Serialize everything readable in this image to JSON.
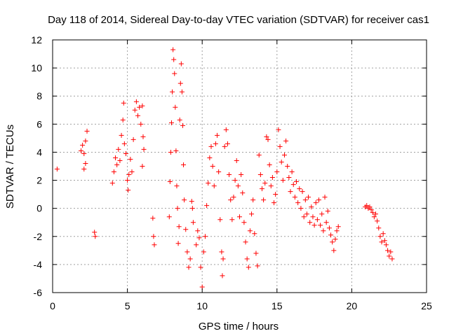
{
  "chart_data": {
    "type": "scatter",
    "title": "Day 118 of 2014, Sidereal Day-to-day VTEC variation (SDTVAR) for receiver cas1",
    "xlabel": "GPS time / hours",
    "ylabel": "SDTVAR / TECUs",
    "xlim": [
      0,
      25
    ],
    "ylim": [
      -6,
      12
    ],
    "xticks": [
      0,
      5,
      10,
      15,
      20,
      25
    ],
    "yticks": [
      -6,
      -4,
      -2,
      0,
      2,
      4,
      6,
      8,
      10,
      12
    ],
    "xtick_labels": [
      "0",
      "5",
      "10",
      "15",
      "20",
      "25"
    ],
    "ytick_labels": [
      "-6",
      "-4",
      "-2",
      "0",
      "2",
      "4",
      "6",
      "8",
      "10",
      "12"
    ],
    "grid": true,
    "marker": "+",
    "color": "#ff0000",
    "series": [
      {
        "name": "cas1",
        "points": [
          [
            0.3,
            2.8
          ],
          [
            1.9,
            4.1
          ],
          [
            2.0,
            4.5
          ],
          [
            2.1,
            3.9
          ],
          [
            2.2,
            4.8
          ],
          [
            2.3,
            5.5
          ],
          [
            2.2,
            3.2
          ],
          [
            2.1,
            2.8
          ],
          [
            2.8,
            -1.7
          ],
          [
            2.85,
            -2.0
          ],
          [
            4.0,
            1.8
          ],
          [
            4.1,
            2.6
          ],
          [
            4.2,
            3.6
          ],
          [
            4.3,
            3.1
          ],
          [
            4.4,
            4.2
          ],
          [
            4.5,
            3.4
          ],
          [
            4.6,
            5.2
          ],
          [
            4.7,
            6.3
          ],
          [
            4.75,
            7.5
          ],
          [
            4.8,
            4.6
          ],
          [
            4.9,
            3.9
          ],
          [
            5.0,
            2.0
          ],
          [
            5.05,
            1.3
          ],
          [
            5.1,
            2.4
          ],
          [
            5.2,
            3.5
          ],
          [
            5.3,
            2.6
          ],
          [
            5.4,
            4.9
          ],
          [
            5.5,
            7.0
          ],
          [
            5.6,
            7.6
          ],
          [
            5.7,
            6.6
          ],
          [
            5.8,
            7.2
          ],
          [
            5.9,
            6.0
          ],
          [
            6.0,
            7.3
          ],
          [
            6.05,
            5.1
          ],
          [
            6.1,
            4.2
          ],
          [
            6.0,
            3.0
          ],
          [
            6.7,
            -0.7
          ],
          [
            6.75,
            -2.0
          ],
          [
            6.8,
            -2.6
          ],
          [
            7.8,
            -0.6
          ],
          [
            7.85,
            1.9
          ],
          [
            7.9,
            4.0
          ],
          [
            7.95,
            6.1
          ],
          [
            8.0,
            8.3
          ],
          [
            8.05,
            11.3
          ],
          [
            8.1,
            10.6
          ],
          [
            8.15,
            9.6
          ],
          [
            8.2,
            7.2
          ],
          [
            8.25,
            4.1
          ],
          [
            8.3,
            1.6
          ],
          [
            8.35,
            0.0
          ],
          [
            8.4,
            -2.5
          ],
          [
            8.45,
            -1.3
          ],
          [
            8.5,
            6.3
          ],
          [
            8.55,
            8.9
          ],
          [
            8.6,
            10.3
          ],
          [
            8.65,
            8.3
          ],
          [
            8.7,
            5.9
          ],
          [
            8.75,
            3.1
          ],
          [
            8.8,
            0.6
          ],
          [
            8.9,
            -1.5
          ],
          [
            9.0,
            -3.1
          ],
          [
            9.1,
            -4.2
          ],
          [
            9.2,
            -3.6
          ],
          [
            9.3,
            0.5
          ],
          [
            9.35,
            0.0
          ],
          [
            9.4,
            -1.0
          ],
          [
            9.6,
            -2.6
          ],
          [
            9.7,
            -1.6
          ],
          [
            9.8,
            -2.1
          ],
          [
            9.9,
            -4.2
          ],
          [
            10.0,
            -5.6
          ],
          [
            10.1,
            -3.1
          ],
          [
            10.2,
            -2.0
          ],
          [
            10.3,
            0.2
          ],
          [
            10.4,
            1.8
          ],
          [
            10.5,
            3.6
          ],
          [
            10.6,
            4.4
          ],
          [
            10.7,
            3.0
          ],
          [
            10.8,
            1.6
          ],
          [
            10.9,
            4.6
          ],
          [
            11.0,
            5.2
          ],
          [
            11.1,
            2.6
          ],
          [
            11.2,
            -0.8
          ],
          [
            11.3,
            -3.1
          ],
          [
            11.35,
            -4.8
          ],
          [
            11.4,
            -3.6
          ],
          [
            11.5,
            4.4
          ],
          [
            11.6,
            5.6
          ],
          [
            11.7,
            4.6
          ],
          [
            11.8,
            2.4
          ],
          [
            11.9,
            0.6
          ],
          [
            12.0,
            -0.8
          ],
          [
            12.1,
            0.8
          ],
          [
            12.2,
            2.0
          ],
          [
            12.3,
            3.4
          ],
          [
            12.4,
            1.6
          ],
          [
            12.5,
            -0.6
          ],
          [
            12.6,
            2.4
          ],
          [
            12.7,
            1.1
          ],
          [
            12.8,
            -1.0
          ],
          [
            12.9,
            -2.4
          ],
          [
            13.0,
            -3.6
          ],
          [
            13.1,
            -4.2
          ],
          [
            13.2,
            -1.6
          ],
          [
            13.3,
            -0.4
          ],
          [
            13.4,
            0.6
          ],
          [
            13.5,
            -1.8
          ],
          [
            13.6,
            -3.2
          ],
          [
            13.7,
            -4.1
          ],
          [
            13.8,
            3.8
          ],
          [
            13.9,
            2.4
          ],
          [
            14.0,
            1.4
          ],
          [
            14.1,
            0.6
          ],
          [
            14.2,
            1.8
          ],
          [
            14.3,
            5.1
          ],
          [
            14.4,
            4.9
          ],
          [
            14.5,
            3.1
          ],
          [
            14.6,
            1.6
          ],
          [
            14.7,
            2.2
          ],
          [
            14.8,
            0.4
          ],
          [
            14.9,
            1.0
          ],
          [
            15.0,
            2.6
          ],
          [
            15.1,
            5.6
          ],
          [
            15.2,
            4.4
          ],
          [
            15.3,
            3.3
          ],
          [
            15.4,
            2.0
          ],
          [
            15.5,
            3.8
          ],
          [
            15.6,
            4.8
          ],
          [
            15.7,
            3.0
          ],
          [
            15.8,
            2.2
          ],
          [
            15.9,
            1.2
          ],
          [
            16.0,
            2.6
          ],
          [
            16.1,
            1.7
          ],
          [
            16.2,
            0.8
          ],
          [
            16.3,
            1.9
          ],
          [
            16.4,
            0.4
          ],
          [
            16.5,
            1.4
          ],
          [
            16.6,
            0.0
          ],
          [
            16.7,
            1.2
          ],
          [
            16.8,
            -0.6
          ],
          [
            16.9,
            0.6
          ],
          [
            17.0,
            -0.4
          ],
          [
            17.1,
            0.8
          ],
          [
            17.2,
            -1.0
          ],
          [
            17.3,
            0.1
          ],
          [
            17.4,
            -0.6
          ],
          [
            17.5,
            -1.2
          ],
          [
            17.6,
            0.4
          ],
          [
            17.7,
            -0.8
          ],
          [
            17.8,
            0.6
          ],
          [
            17.9,
            -1.2
          ],
          [
            18.0,
            -0.4
          ],
          [
            18.1,
            -1.6
          ],
          [
            18.2,
            0.8
          ],
          [
            18.3,
            -1.0
          ],
          [
            18.4,
            -0.2
          ],
          [
            18.5,
            -1.4
          ],
          [
            18.6,
            -1.9
          ],
          [
            18.7,
            -2.4
          ],
          [
            18.8,
            -3.0
          ],
          [
            18.9,
            -2.2
          ],
          [
            19.0,
            -1.6
          ],
          [
            19.1,
            -1.3
          ],
          [
            20.9,
            0.1
          ],
          [
            21.0,
            0.2
          ],
          [
            21.1,
            0.0
          ],
          [
            21.2,
            0.1
          ],
          [
            21.3,
            -0.1
          ],
          [
            21.4,
            -0.3
          ],
          [
            21.5,
            -0.6
          ],
          [
            21.6,
            -0.4
          ],
          [
            21.7,
            -0.9
          ],
          [
            21.8,
            -1.4
          ],
          [
            21.9,
            -2.0
          ],
          [
            22.0,
            -2.4
          ],
          [
            22.1,
            -1.8
          ],
          [
            22.2,
            -2.3
          ],
          [
            22.3,
            -2.6
          ],
          [
            22.4,
            -3.0
          ],
          [
            22.5,
            -3.4
          ],
          [
            22.6,
            -3.1
          ],
          [
            22.7,
            -3.6
          ]
        ]
      }
    ]
  }
}
